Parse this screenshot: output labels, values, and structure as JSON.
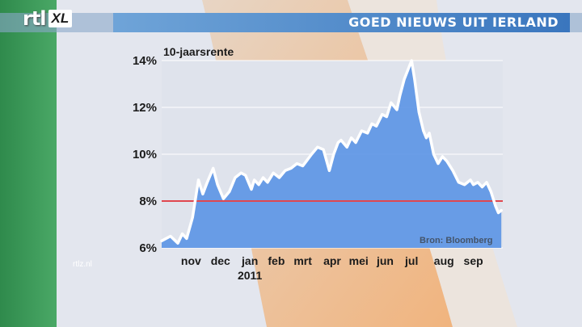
{
  "header": {
    "logo_text": "rtl",
    "logo_badge": "XL",
    "title": "GOED NIEUWS UIT IERLAND"
  },
  "watermark": "rtlz.nl",
  "colors": {
    "flag_green": "#3e9a5a",
    "flag_white": "#f4f4f4",
    "flag_orange": "#f2b47e",
    "banner": "#4f8cd0",
    "area_fill": "#5b93e6",
    "line": "#ffffff",
    "reference_line": "#e0474f"
  },
  "chart_data": {
    "type": "area",
    "title": "",
    "series_label": "10-jaarsrente",
    "source": "Bron: Bloomberg",
    "ylim": [
      6,
      14
    ],
    "yticks": [
      "6%",
      "8%",
      "10%",
      "12%",
      "14%"
    ],
    "ytick_values": [
      6,
      8,
      10,
      12,
      14
    ],
    "xlim": [
      0,
      11.6
    ],
    "xticks": [
      {
        "label": "nov",
        "x": 1
      },
      {
        "label": "dec",
        "x": 2
      },
      {
        "label": "jan",
        "x": 3
      },
      {
        "label": "feb",
        "x": 3.9
      },
      {
        "label": "mrt",
        "x": 4.8
      },
      {
        "label": "apr",
        "x": 5.8
      },
      {
        "label": "mei",
        "x": 6.7
      },
      {
        "label": "jun",
        "x": 7.6
      },
      {
        "label": "jul",
        "x": 8.5
      },
      {
        "label": "aug",
        "x": 9.6
      },
      {
        "label": "sep",
        "x": 10.6
      }
    ],
    "year_label": "2011",
    "reference_line": 8,
    "grid": true,
    "series": [
      {
        "x": [
          0,
          0.3,
          0.55,
          0.7,
          0.85,
          1.05,
          1.25,
          1.4,
          1.55,
          1.75,
          1.9,
          2.1,
          2.3,
          2.5,
          2.7,
          2.85,
          3.05,
          3.15,
          3.3,
          3.45,
          3.6,
          3.8,
          4.0,
          4.2,
          4.4,
          4.6,
          4.8,
          5.1,
          5.3,
          5.5,
          5.7,
          5.85,
          6.0,
          6.1,
          6.3,
          6.45,
          6.6,
          6.8,
          7.0,
          7.15,
          7.3,
          7.5,
          7.65,
          7.8,
          8.0,
          8.1,
          8.25,
          8.5,
          8.6,
          8.75,
          8.9,
          9.0,
          9.1,
          9.25,
          9.4,
          9.55,
          9.7,
          9.9,
          10.1,
          10.3,
          10.5,
          10.6,
          10.75,
          10.9,
          11.05,
          11.2,
          11.35,
          11.45,
          11.55
        ],
        "y": [
          6.3,
          6.5,
          6.2,
          6.6,
          6.4,
          7.3,
          8.9,
          8.3,
          8.8,
          9.4,
          8.7,
          8.1,
          8.4,
          9.0,
          9.2,
          9.1,
          8.5,
          8.9,
          8.7,
          9.0,
          8.8,
          9.2,
          9.0,
          9.3,
          9.4,
          9.6,
          9.5,
          10.0,
          10.3,
          10.2,
          9.3,
          10.0,
          10.5,
          10.6,
          10.3,
          10.7,
          10.5,
          11.0,
          10.9,
          11.3,
          11.2,
          11.7,
          11.6,
          12.2,
          11.9,
          12.5,
          13.2,
          14.0,
          13.2,
          11.8,
          11.0,
          10.7,
          10.9,
          10.0,
          9.6,
          9.9,
          9.7,
          9.3,
          8.8,
          8.7,
          8.9,
          8.7,
          8.8,
          8.6,
          8.8,
          8.4,
          7.8,
          7.5,
          7.6
        ]
      }
    ]
  }
}
